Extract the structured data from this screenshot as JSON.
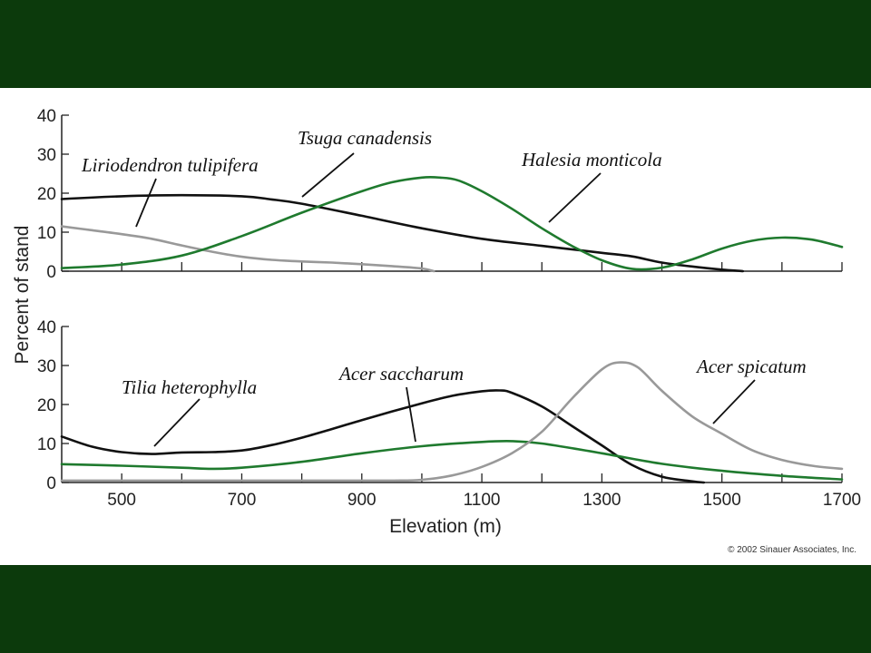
{
  "colors": {
    "background": "#0c3a0c",
    "panel": "#ffffff",
    "black_series": "#111111",
    "green_series": "#1f7a2e",
    "gray_series": "#999999"
  },
  "ylabel": "Percent of stand",
  "xlabel": "Elevation (m)",
  "copyright": "© 2002 Sinauer Associates, Inc.",
  "chart_data": [
    {
      "type": "line",
      "panel": "top",
      "xlim": [
        400,
        1700
      ],
      "ylim": [
        0,
        40
      ],
      "yticks": [
        0,
        10,
        20,
        30,
        40
      ],
      "grid": false,
      "series": [
        {
          "name": "Liriodendron tulipifera",
          "color": "gray",
          "x": [
            400,
            450,
            500,
            550,
            600,
            650,
            700,
            750,
            800,
            850,
            900,
            950,
            1000,
            1020
          ],
          "y": [
            11.5,
            10.5,
            9.5,
            8.3,
            6.6,
            5.0,
            3.7,
            2.9,
            2.5,
            2.2,
            1.8,
            1.3,
            0.7,
            0
          ]
        },
        {
          "name": "Tsuga canadensis",
          "color": "black",
          "x": [
            400,
            500,
            600,
            700,
            750,
            800,
            900,
            1000,
            1100,
            1200,
            1300,
            1350,
            1400,
            1450,
            1500,
            1535
          ],
          "y": [
            18.5,
            19.2,
            19.5,
            19.2,
            18.4,
            17.3,
            14.2,
            11.0,
            8.3,
            6.5,
            4.7,
            3.8,
            2.2,
            1.2,
            0.4,
            0
          ]
        },
        {
          "name": "Halesia monticola",
          "color": "green",
          "x": [
            400,
            500,
            600,
            700,
            800,
            900,
            950,
            1000,
            1030,
            1060,
            1100,
            1150,
            1200,
            1250,
            1300,
            1350,
            1400,
            1450,
            1500,
            1550,
            1600,
            1650,
            1700
          ],
          "y": [
            0.8,
            1.7,
            4.0,
            9.0,
            15.0,
            20.5,
            22.8,
            24.0,
            24.0,
            23.3,
            20.5,
            16.0,
            11.0,
            6.5,
            2.8,
            0.6,
            0.9,
            3.0,
            5.8,
            7.8,
            8.6,
            8.1,
            6.2
          ]
        }
      ]
    },
    {
      "type": "line",
      "panel": "bottom",
      "xlim": [
        400,
        1700
      ],
      "ylim": [
        0,
        40
      ],
      "yticks": [
        0,
        10,
        20,
        30,
        40
      ],
      "xticks": [
        500,
        700,
        900,
        1100,
        1300,
        1500,
        1700
      ],
      "grid": false,
      "series": [
        {
          "name": "Tilia heterophylla",
          "color": "black",
          "x": [
            400,
            450,
            500,
            550,
            600,
            650,
            700,
            750,
            800,
            850,
            900,
            950,
            1000,
            1050,
            1100,
            1130,
            1150,
            1200,
            1250,
            1300,
            1350,
            1400,
            1450,
            1470
          ],
          "y": [
            11.8,
            9.2,
            7.8,
            7.3,
            7.7,
            7.8,
            8.2,
            9.6,
            11.5,
            13.7,
            16.0,
            18.2,
            20.3,
            22.2,
            23.4,
            23.6,
            23.0,
            19.5,
            14.5,
            9.5,
            4.5,
            1.5,
            0.3,
            0
          ]
        },
        {
          "name": "Acer saccharum",
          "color": "green",
          "x": [
            400,
            500,
            600,
            650,
            700,
            800,
            900,
            1000,
            1100,
            1150,
            1200,
            1300,
            1400,
            1500,
            1600,
            1700
          ],
          "y": [
            4.7,
            4.3,
            3.8,
            3.5,
            3.8,
            5.3,
            7.5,
            9.3,
            10.4,
            10.6,
            10.0,
            7.5,
            4.8,
            3.0,
            1.7,
            0.8
          ]
        },
        {
          "name": "Acer spicatum",
          "color": "gray",
          "x": [
            400,
            600,
            800,
            950,
            1000,
            1050,
            1100,
            1150,
            1200,
            1250,
            1300,
            1330,
            1360,
            1400,
            1450,
            1500,
            1550,
            1600,
            1650,
            1700
          ],
          "y": [
            0.5,
            0.5,
            0.5,
            0.5,
            0.7,
            1.8,
            4.0,
            7.5,
            13.0,
            21.5,
            29.0,
            30.8,
            29.5,
            23.5,
            17.0,
            12.5,
            8.3,
            5.8,
            4.3,
            3.5
          ]
        }
      ]
    }
  ]
}
